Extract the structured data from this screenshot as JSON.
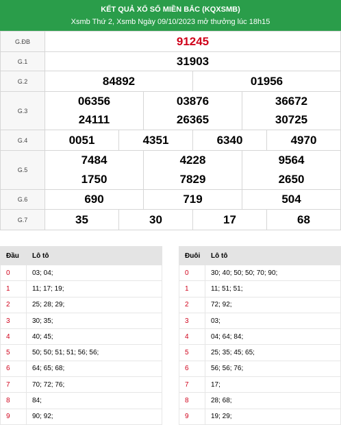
{
  "header": {
    "title": "KẾT QUẢ XỔ SỐ MIỀN BẮC (KQXSMB)",
    "subtitle": "Xsmb Thứ 2, Xsmb Ngày 09/10/2023 mở thưởng lúc 18h15"
  },
  "prizes": {
    "gdb": {
      "label": "G.ĐB",
      "nums": [
        "91245"
      ]
    },
    "g1": {
      "label": "G.1",
      "nums": [
        "31903"
      ]
    },
    "g2": {
      "label": "G.2",
      "nums": [
        "84892",
        "01956"
      ]
    },
    "g3": {
      "label": "G.3",
      "nums": [
        "06356",
        "03876",
        "36672",
        "24111",
        "26365",
        "30725"
      ]
    },
    "g4": {
      "label": "G.4",
      "nums": [
        "0051",
        "4351",
        "6340",
        "4970"
      ]
    },
    "g5": {
      "label": "G.5",
      "nums": [
        "7484",
        "4228",
        "9564",
        "1750",
        "7829",
        "2650"
      ]
    },
    "g6": {
      "label": "G.6",
      "nums": [
        "690",
        "719",
        "504"
      ]
    },
    "g7": {
      "label": "G.7",
      "nums": [
        "35",
        "30",
        "17",
        "68"
      ]
    }
  },
  "dau": {
    "col1": "Đầu",
    "col2": "Lô tô",
    "rows": [
      {
        "k": "0",
        "v": "03; 04;"
      },
      {
        "k": "1",
        "v": "11; 17; 19;"
      },
      {
        "k": "2",
        "v": "25; 28; 29;"
      },
      {
        "k": "3",
        "v": "30; 35;"
      },
      {
        "k": "4",
        "v": "40; 45;"
      },
      {
        "k": "5",
        "v": "50; 50; 51; 51; 56; 56;"
      },
      {
        "k": "6",
        "v": "64; 65; 68;"
      },
      {
        "k": "7",
        "v": "70; 72; 76;"
      },
      {
        "k": "8",
        "v": "84;"
      },
      {
        "k": "9",
        "v": "90; 92;"
      }
    ]
  },
  "duoi": {
    "col1": "Đuôi",
    "col2": "Lô tô",
    "rows": [
      {
        "k": "0",
        "v": "30; 40; 50; 50; 70; 90;"
      },
      {
        "k": "1",
        "v": "11; 51; 51;"
      },
      {
        "k": "2",
        "v": "72; 92;"
      },
      {
        "k": "3",
        "v": "03;"
      },
      {
        "k": "4",
        "v": "04; 64; 84;"
      },
      {
        "k": "5",
        "v": "25; 35; 45; 65;"
      },
      {
        "k": "6",
        "v": "56; 56; 76;"
      },
      {
        "k": "7",
        "v": "17;"
      },
      {
        "k": "8",
        "v": "28; 68;"
      },
      {
        "k": "9",
        "v": "19; 29;"
      }
    ]
  },
  "colors": {
    "header_bg": "#2a9d4a",
    "special": "#d0021b",
    "head_digit": "#d0021b"
  }
}
